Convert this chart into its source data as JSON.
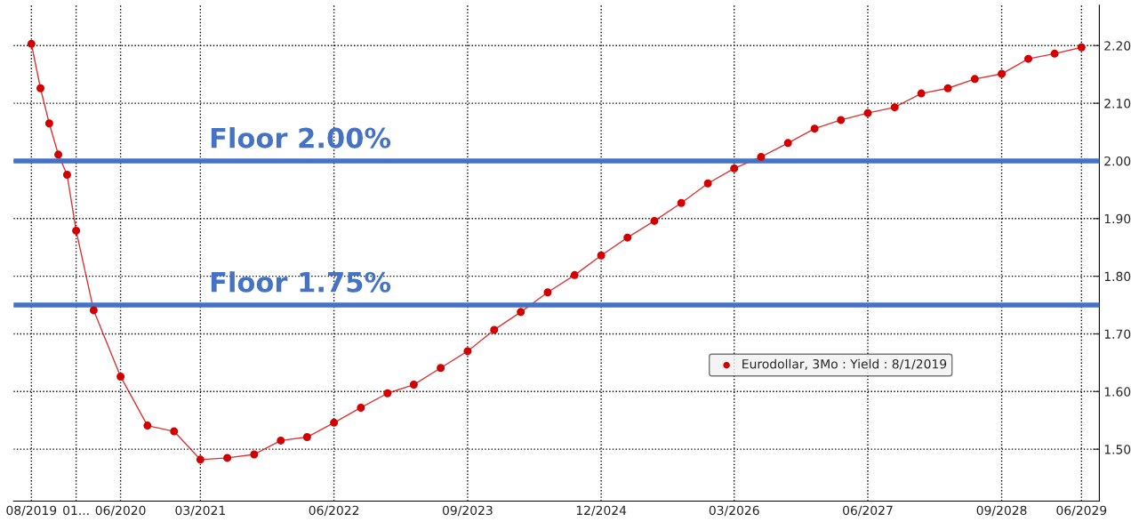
{
  "chart_data": {
    "type": "line",
    "x": [
      "2019-08",
      "2019-09",
      "2019-10",
      "2019-11",
      "2019-12",
      "2020-01",
      "2020-03",
      "2020-06",
      "2020-09",
      "2020-12",
      "2021-03",
      "2021-06",
      "2021-09",
      "2021-12",
      "2022-03",
      "2022-06",
      "2022-09",
      "2022-12",
      "2023-03",
      "2023-06",
      "2023-09",
      "2023-12",
      "2024-03",
      "2024-06",
      "2024-09",
      "2024-12",
      "2025-03",
      "2025-06",
      "2025-09",
      "2025-12",
      "2026-03",
      "2026-06",
      "2026-09",
      "2026-12",
      "2027-03",
      "2027-06",
      "2027-09",
      "2027-12",
      "2028-03",
      "2028-06",
      "2028-09",
      "2028-12",
      "2029-03",
      "2029-06"
    ],
    "series": [
      {
        "name": "Eurodollar, 3Mo : Yield : 8/1/2019",
        "color": "#d40000",
        "values": [
          2.203,
          2.126,
          2.065,
          2.011,
          1.976,
          1.879,
          1.741,
          1.626,
          1.541,
          1.531,
          1.482,
          1.485,
          1.491,
          1.515,
          1.521,
          1.546,
          1.572,
          1.597,
          1.612,
          1.641,
          1.67,
          1.707,
          1.738,
          1.772,
          1.802,
          1.836,
          1.867,
          1.896,
          1.927,
          1.961,
          1.987,
          2.007,
          2.031,
          2.056,
          2.071,
          2.083,
          2.093,
          2.117,
          2.126,
          2.142,
          2.151,
          2.177,
          2.186,
          2.197
        ]
      }
    ],
    "xlim": [
      "2019-06",
      "2029-08"
    ],
    "xticks": [
      {
        "value": "2019-08",
        "label": "08/2019"
      },
      {
        "value": "2020-01",
        "label": "01..."
      },
      {
        "value": "2020-06",
        "label": "06/2020"
      },
      {
        "value": "2021-03",
        "label": "03/2021"
      },
      {
        "value": "2022-06",
        "label": "06/2022"
      },
      {
        "value": "2023-09",
        "label": "09/2023"
      },
      {
        "value": "2024-12",
        "label": "12/2024"
      },
      {
        "value": "2026-03",
        "label": "03/2026"
      },
      {
        "value": "2027-06",
        "label": "06/2027"
      },
      {
        "value": "2028-09",
        "label": "09/2028"
      },
      {
        "value": "2029-06",
        "label": "06/2029"
      }
    ],
    "ylim": [
      1.41,
      2.27
    ],
    "yticks": [
      {
        "value": 1.5,
        "label": "1.50"
      },
      {
        "value": 1.6,
        "label": "1.60"
      },
      {
        "value": 1.7,
        "label": "1.70"
      },
      {
        "value": 1.8,
        "label": "1.80"
      },
      {
        "value": 1.9,
        "label": "1.90"
      },
      {
        "value": 2.0,
        "label": "2.00"
      },
      {
        "value": 2.1,
        "label": "2.10"
      },
      {
        "value": 2.2,
        "label": "2.20"
      }
    ],
    "ref_lines": [
      {
        "axis": "y",
        "value": 2.0,
        "label": "Floor 2.00%",
        "color": "#4472c4"
      },
      {
        "axis": "y",
        "value": 1.75,
        "label": "Floor 1.75%",
        "color": "#4472c4"
      }
    ],
    "grid": true,
    "legend": "right",
    "marker": "circle",
    "line_style": "solid"
  }
}
